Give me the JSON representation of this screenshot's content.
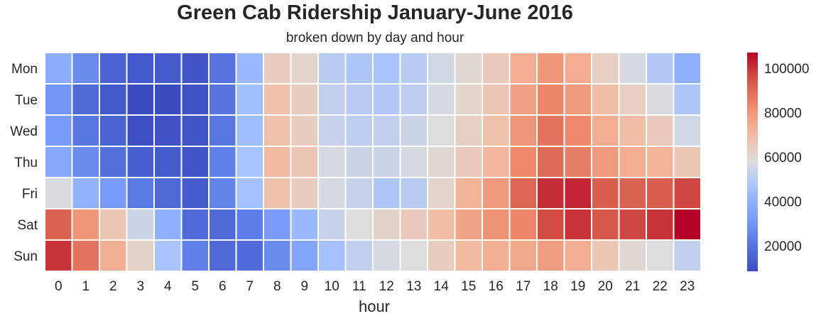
{
  "chart_data": {
    "type": "heatmap",
    "title": "Green Cab Ridership January-June 2016",
    "subtitle": "broken down by day and hour",
    "xlabel": "hour",
    "ylabel": "",
    "x_categories": [
      "0",
      "1",
      "2",
      "3",
      "4",
      "5",
      "6",
      "7",
      "8",
      "9",
      "10",
      "11",
      "12",
      "13",
      "14",
      "15",
      "16",
      "17",
      "18",
      "19",
      "20",
      "21",
      "22",
      "23"
    ],
    "y_categories": [
      "Mon",
      "Tue",
      "Wed",
      "Thu",
      "Fri",
      "Sat",
      "Sun"
    ],
    "values": [
      [
        38000,
        27000,
        15000,
        12000,
        13000,
        11000,
        20000,
        43000,
        64000,
        61000,
        50000,
        48000,
        47000,
        50000,
        55000,
        60000,
        65000,
        74000,
        80000,
        74000,
        63000,
        56000,
        49000,
        39000
      ],
      [
        30000,
        17000,
        12000,
        8500,
        8500,
        10000,
        20000,
        45000,
        68000,
        64000,
        52000,
        50000,
        49000,
        51000,
        56000,
        61000,
        66000,
        77000,
        84000,
        79000,
        69000,
        63000,
        57000,
        48000
      ],
      [
        32000,
        21000,
        15000,
        9500,
        10000,
        11000,
        21000,
        44000,
        68000,
        64000,
        53000,
        51000,
        52000,
        54000,
        58000,
        63000,
        68000,
        80000,
        88000,
        83000,
        74000,
        69000,
        65000,
        55000
      ],
      [
        37000,
        27000,
        19000,
        14000,
        13000,
        11000,
        24000,
        47000,
        70000,
        66000,
        56000,
        54000,
        54000,
        56000,
        60000,
        65000,
        71000,
        83000,
        90000,
        86000,
        79000,
        74000,
        72000,
        66000
      ],
      [
        57000,
        40000,
        32000,
        22000,
        17000,
        13000,
        25000,
        46000,
        68000,
        64000,
        56000,
        53000,
        48000,
        50000,
        61000,
        72000,
        79000,
        91000,
        101000,
        102000,
        93000,
        92000,
        93000,
        97000
      ],
      [
        92000,
        80000,
        66000,
        54000,
        39000,
        18000,
        17000,
        23000,
        32000,
        43000,
        53000,
        58000,
        62000,
        65000,
        69000,
        76000,
        81000,
        84000,
        96000,
        100000,
        94000,
        97000,
        100000,
        107000
      ],
      [
        100000,
        88000,
        73000,
        62000,
        47000,
        24000,
        17000,
        18000,
        27000,
        35000,
        46000,
        52000,
        56000,
        58000,
        64000,
        70000,
        73000,
        75000,
        78000,
        73000,
        66000,
        60000,
        58000,
        52000
      ]
    ],
    "colormap": "coolwarm",
    "colorbar": {
      "min": 8500,
      "max": 107000,
      "ticks": [
        20000,
        40000,
        60000,
        80000,
        100000
      ],
      "tick_labels": [
        "20000",
        "40000",
        "60000",
        "80000",
        "100000"
      ]
    },
    "cell_border_color": "#ffffff",
    "grid": false
  }
}
